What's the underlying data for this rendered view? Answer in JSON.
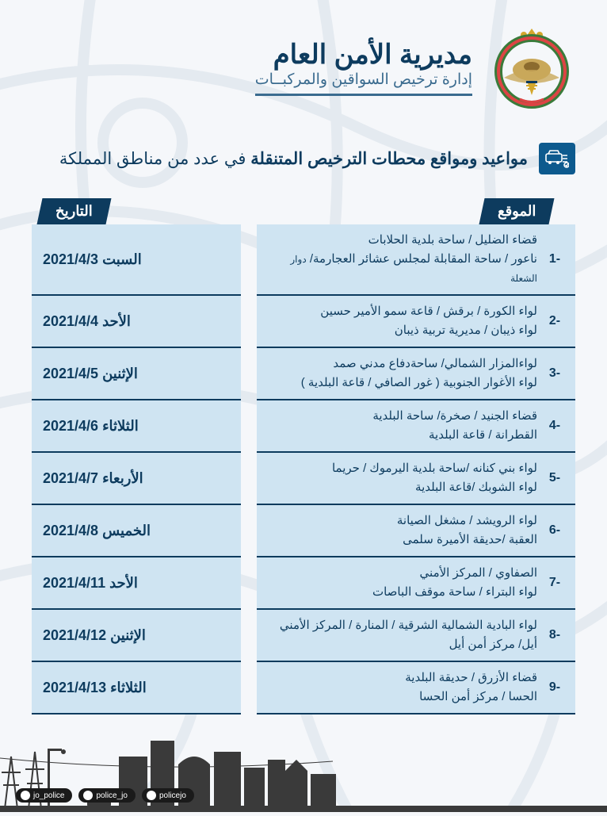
{
  "header": {
    "title": "مديرية الأمن العام",
    "subtitle": "إدارة ترخيص السواقين والمركبــات"
  },
  "page_subtitle": {
    "bold": "مواعيد ومواقع محطات الترخيص المتنقلة",
    "rest": " في عدد من مناطق المملكة"
  },
  "columns": {
    "location": "الموقع",
    "date": "التاريخ"
  },
  "rows": [
    {
      "num": "-1",
      "loc1": "قضاء الضليل / ساحة بلدية الحلابات",
      "loc2": "ناعور / ساحة المقابلة لمجلس عشائر العجارمة/ ",
      "loc2_small": "دوار الشعلة",
      "date": "السبت  2021/4/3"
    },
    {
      "num": "-2",
      "loc1": "لواء الكورة / برقش / قاعة سمو الأمير حسين",
      "loc2": "لواء ذيبان / مديرية تربية ذيبان",
      "date": "الأحد  2021/4/4"
    },
    {
      "num": "-3",
      "loc1": "لواءالمزار الشمالي/ ساحةدفاع مدني صمد",
      "loc2": "لواء الأغوار الجنوبية ( غور الصافي / قاعة البلدية )",
      "date": "الإثنين  2021/4/5"
    },
    {
      "num": "-4",
      "loc1": "قضاء الجنيد / صخرة/ ساحة البلدية",
      "loc2": "القطرانة / قاعة البلدية",
      "date": "الثلاثاء  2021/4/6"
    },
    {
      "num": "-5",
      "loc1": "لواء بني كنانه /ساحة بلدية اليرموك / حريما",
      "loc2": "لواء الشوبك /قاعة البلدية",
      "date": "الأربعاء  2021/4/7"
    },
    {
      "num": "-6",
      "loc1": "لواء الرويشد / مشغل الصيانة",
      "loc2": "العقبة  /حديقة الأميرة سلمى",
      "date": "الخميس  2021/4/8"
    },
    {
      "num": "-7",
      "loc1": "الصفاوي / المركز الأمني",
      "loc2": "لواء البتراء / ساحة موقف الباصات",
      "date": "الأحد  2021/4/11"
    },
    {
      "num": "-8",
      "loc1": "لواء البادية الشمالية الشرقية / المنارة / المركز الأمني",
      "loc2": "أيل/ مركز أمن أيل",
      "date": "الإثنين  2021/4/12"
    },
    {
      "num": "-9",
      "loc1": "قضاء الأزرق / حديقة البلدية",
      "loc2": "الحسا / مركز أمن الحسا",
      "date": "الثلاثاء  2021/4/13"
    }
  ],
  "social": [
    {
      "handle": "jo_police"
    },
    {
      "handle": "police_jo"
    },
    {
      "handle": "policejo"
    }
  ],
  "colors": {
    "primary": "#0d3b5e",
    "row_bg": "#cfe4f2",
    "page_bg": "#f5f7fa"
  }
}
